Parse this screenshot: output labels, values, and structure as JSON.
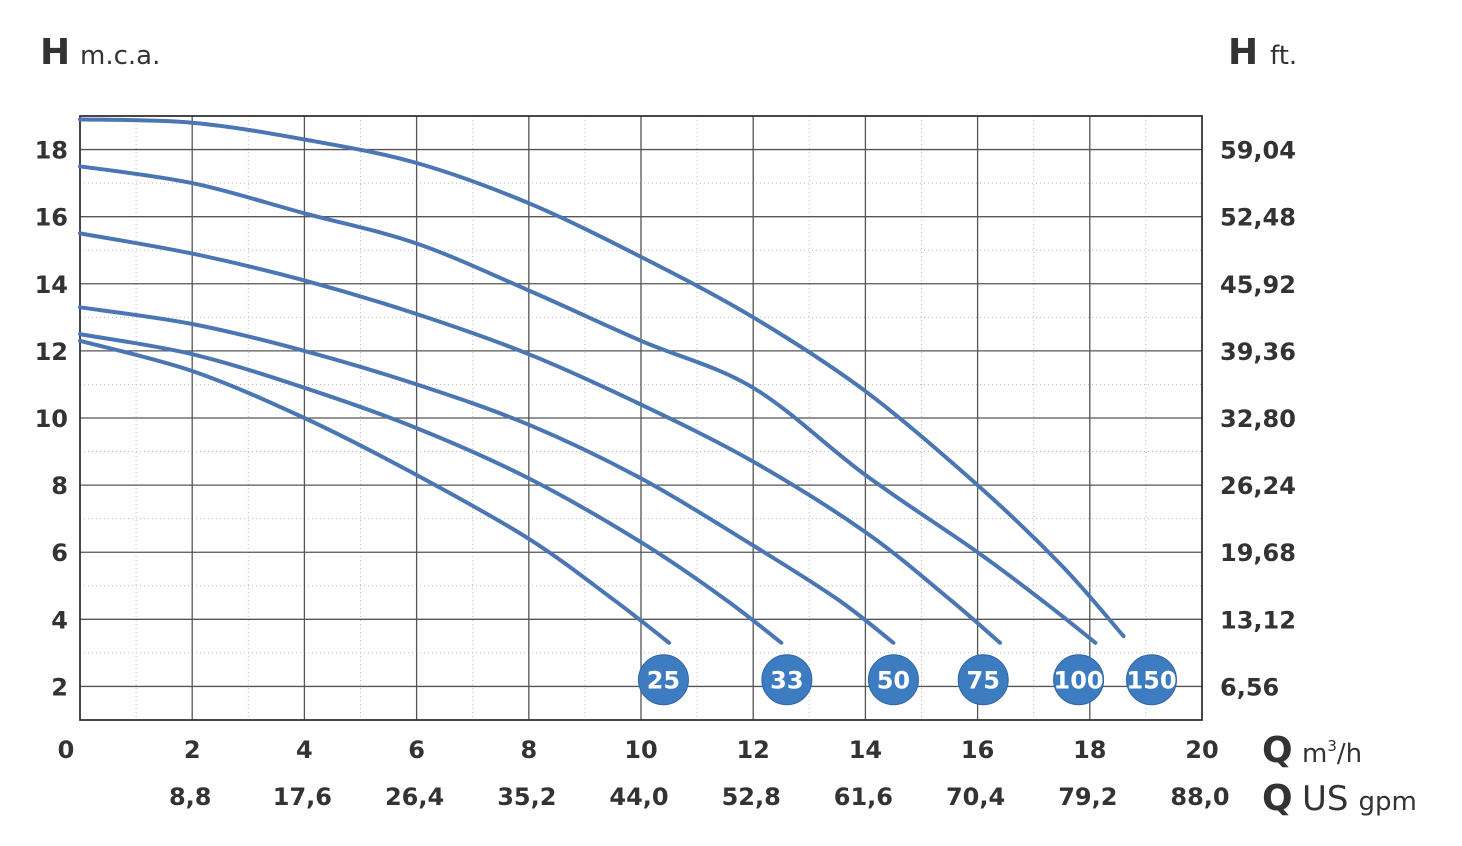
{
  "chart_data": {
    "type": "line",
    "y_axis_left": {
      "symbol": "H",
      "unit": "m.c.a.",
      "ticks": [
        "2",
        "4",
        "6",
        "8",
        "10",
        "12",
        "14",
        "16",
        "18"
      ],
      "range": [
        1,
        19
      ]
    },
    "y_axis_right": {
      "symbol": "H",
      "unit": "ft.",
      "ticks": [
        "6,56",
        "13,12",
        "19,68",
        "26,24",
        "32,80",
        "39,36",
        "45,92",
        "52,48",
        "59,04"
      ]
    },
    "x_axis_primary": {
      "symbol": "Q",
      "unit": "m³/h",
      "unit_base": "m",
      "unit_sup": "3",
      "unit_tail": "/h",
      "ticks": [
        "0",
        "2",
        "4",
        "6",
        "8",
        "10",
        "12",
        "14",
        "16",
        "18",
        "20"
      ],
      "range": [
        0,
        20
      ]
    },
    "x_axis_secondary": {
      "symbol": "Q",
      "unit_main": "US",
      "unit_sub": "gpm",
      "ticks": [
        "8,8",
        "17,6",
        "26,4",
        "35,2",
        "44,0",
        "52,8",
        "61,6",
        "70,4",
        "79,2",
        "88,0"
      ]
    },
    "grid": true,
    "series": [
      {
        "name": "25",
        "points": [
          [
            0,
            12.3
          ],
          [
            2,
            11.4
          ],
          [
            4,
            10.0
          ],
          [
            6,
            8.3
          ],
          [
            8,
            6.4
          ],
          [
            9.5,
            4.6
          ],
          [
            10.5,
            3.3
          ]
        ]
      },
      {
        "name": "33",
        "points": [
          [
            0,
            12.5
          ],
          [
            2,
            11.9
          ],
          [
            4,
            10.9
          ],
          [
            6,
            9.7
          ],
          [
            8,
            8.2
          ],
          [
            10,
            6.3
          ],
          [
            11.5,
            4.6
          ],
          [
            12.5,
            3.3
          ]
        ]
      },
      {
        "name": "50",
        "points": [
          [
            0,
            13.3
          ],
          [
            2,
            12.8
          ],
          [
            4,
            12.0
          ],
          [
            6,
            11.0
          ],
          [
            8,
            9.8
          ],
          [
            10,
            8.2
          ],
          [
            12,
            6.2
          ],
          [
            13.5,
            4.6
          ],
          [
            14.5,
            3.3
          ]
        ]
      },
      {
        "name": "75",
        "points": [
          [
            0,
            15.5
          ],
          [
            2,
            14.9
          ],
          [
            4,
            14.1
          ],
          [
            6,
            13.1
          ],
          [
            8,
            11.9
          ],
          [
            10,
            10.4
          ],
          [
            12,
            8.7
          ],
          [
            14,
            6.6
          ],
          [
            15.5,
            4.6
          ],
          [
            16.4,
            3.3
          ]
        ]
      },
      {
        "name": "100",
        "points": [
          [
            0,
            17.5
          ],
          [
            2,
            17.0
          ],
          [
            4,
            16.1
          ],
          [
            6,
            15.2
          ],
          [
            8,
            13.8
          ],
          [
            10,
            12.3
          ],
          [
            12,
            10.9
          ],
          [
            14,
            8.3
          ],
          [
            16,
            6.0
          ],
          [
            17.2,
            4.5
          ],
          [
            18.1,
            3.3
          ]
        ]
      },
      {
        "name": "150",
        "points": [
          [
            0,
            18.9
          ],
          [
            2,
            18.8
          ],
          [
            4,
            18.3
          ],
          [
            6,
            17.6
          ],
          [
            8,
            16.4
          ],
          [
            10,
            14.8
          ],
          [
            12,
            13.0
          ],
          [
            14,
            10.8
          ],
          [
            16,
            8.0
          ],
          [
            17.5,
            5.6
          ],
          [
            18.6,
            3.5
          ]
        ]
      }
    ],
    "badges": [
      {
        "label": "25",
        "x": 10.4
      },
      {
        "label": "33",
        "x": 12.6
      },
      {
        "label": "50",
        "x": 14.5
      },
      {
        "label": "75",
        "x": 16.1
      },
      {
        "label": "100",
        "x": 17.8
      },
      {
        "label": "150",
        "x": 19.1
      }
    ],
    "badge_level": 2.2,
    "colors": {
      "curve": "#4a76b4",
      "badge": "#3d7cc0",
      "axis": "#333333",
      "grid": "#bbbbbb"
    }
  }
}
